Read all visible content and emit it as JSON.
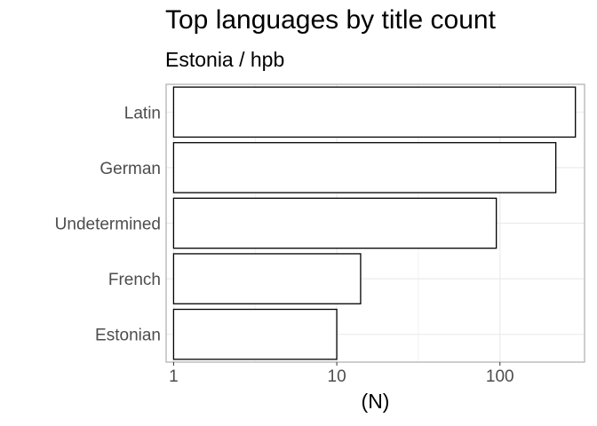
{
  "header": {
    "title": "Top languages by title count",
    "subtitle": "Estonia / hpb"
  },
  "chart_data": {
    "type": "bar",
    "orientation": "horizontal",
    "categories": [
      "Latin",
      "German",
      "Undetermined",
      "French",
      "Estonian"
    ],
    "values": [
      290,
      220,
      95,
      14,
      10
    ],
    "xlabel": "(N)",
    "ylabel": "",
    "xscale": "log10",
    "xlim": [
      0.9,
      330
    ],
    "xticks": [
      "1",
      "10",
      "100"
    ],
    "grid": true,
    "bar_fill": "#ffffff",
    "bar_stroke": "#000000",
    "panel_border": "#b3b3b3",
    "grid_color": "#ebebeb"
  }
}
